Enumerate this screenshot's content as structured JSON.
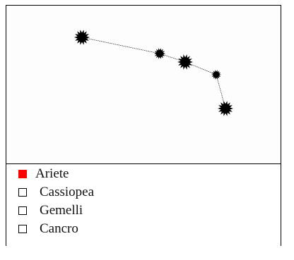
{
  "constellation": {
    "stars": [
      {
        "id": "star-1"
      },
      {
        "id": "star-2"
      },
      {
        "id": "star-3"
      },
      {
        "id": "star-4"
      },
      {
        "id": "star-5"
      }
    ],
    "star_color": "#000000"
  },
  "options": [
    {
      "label": "Ariete",
      "selected": true
    },
    {
      "label": "Cassiopea",
      "selected": false
    },
    {
      "label": "Gemelli",
      "selected": false
    },
    {
      "label": "Cancro",
      "selected": false
    }
  ],
  "colors": {
    "selected": "#ff0000",
    "border": "#000000"
  }
}
